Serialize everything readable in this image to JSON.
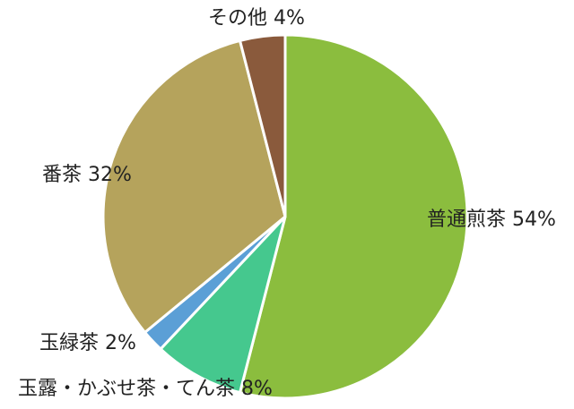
{
  "chart_data": {
    "type": "pie",
    "start_angle_deg": 0,
    "direction": "clockwise",
    "slices": [
      {
        "label": "普通煎茶",
        "value": 54,
        "value_label": "54%",
        "color": "#8bbd3e"
      },
      {
        "label": "玉露・かぶせ茶・てん茶",
        "value": 8,
        "value_label": "8%",
        "color": "#45c88e"
      },
      {
        "label": "玉緑茶",
        "value": 2,
        "value_label": "2%",
        "color": "#5b9fd6"
      },
      {
        "label": "番茶",
        "value": 32,
        "value_label": "32%",
        "color": "#b5a35c"
      },
      {
        "label": "その他",
        "value": 4,
        "value_label": "4%",
        "color": "#8a5a3c"
      }
    ]
  }
}
